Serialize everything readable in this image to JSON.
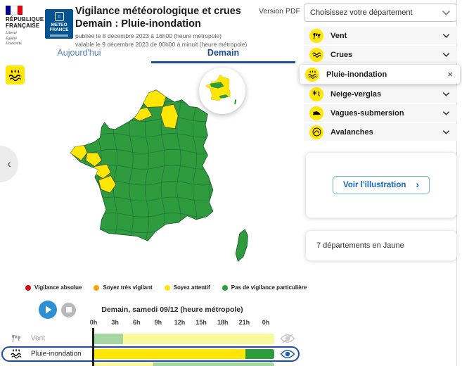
{
  "colors": {
    "alert-red": "#d50b1e",
    "alert-orange": "#f7a600",
    "alert-yellow": "#ffe605",
    "alert-green": "#2f9b3f",
    "pale-green": "#a6d6a2",
    "pale-yellow": "#f8f89c",
    "brand-blue": "#1f4f9c",
    "link-blue": "#1568c2",
    "tab-inactive": "#5585c8"
  },
  "header": {
    "republique_line1": "RÉPUBLIQUE",
    "republique_line2": "FRANÇAISE",
    "motto": "Liberté\nÉgalité\nFraternité",
    "meteo_logo_text": "METEO\nFRANCE",
    "title_line1": "Vigilance météorologique et crues",
    "title_line2": "Demain : Pluie-inondation",
    "published_line": "publiée le 8 décembre 2023 à 16h00 (heure métropole)",
    "valid_line": "valable le 9 décembre 2023 de 00h00 à minuit (heure métropole)",
    "version_pdf_label": "Version PDF",
    "department_placeholder": "Choisissez votre département"
  },
  "tabs": [
    {
      "label": "Aujourd'hui",
      "active": false
    },
    {
      "label": "Demain",
      "active": true
    }
  ],
  "phenomena": [
    {
      "label": "Vent",
      "icon": "windsock-icon",
      "control": "chevron-down",
      "active": false
    },
    {
      "label": "Crues",
      "icon": "flood-waves-icon",
      "control": "chevron-down",
      "active": false
    },
    {
      "label": "Pluie-inondation",
      "icon": "rain-flood-icon",
      "control": "close",
      "active": true
    },
    {
      "label": "Neige-verglas",
      "icon": "snow-ice-icon",
      "control": "chevron-down",
      "active": false
    },
    {
      "label": "Vagues-submersion",
      "icon": "wave-submersion-icon",
      "control": "chevron-down",
      "active": false
    },
    {
      "label": "Avalanches",
      "icon": "avalanche-icon",
      "control": "chevron-down",
      "active": false
    }
  ],
  "illustration_card": {
    "button_label": "Voir l'illustration",
    "arrow": "›"
  },
  "summary_card": {
    "text": "7 départements en Jaune"
  },
  "legend": [
    {
      "label": "Vigilance absolue",
      "color": "#d50b1e"
    },
    {
      "label": "Soyez très vigilant",
      "color": "#f7a600"
    },
    {
      "label": "Soyez attentif",
      "color": "#ffe605"
    },
    {
      "label": "Pas de vigilance particulière",
      "color": "#2f9b3f"
    }
  ],
  "timeline": {
    "heading": "Demain, samedi 09/12 (heure métropole)",
    "hour_labels": [
      "0h",
      "3h",
      "6h",
      "9h",
      "12h",
      "15h",
      "18h",
      "21h",
      "0h"
    ],
    "rows": [
      {
        "label": "Vent",
        "icon": "windsock-icon",
        "eye": "eye-off",
        "muted": true,
        "selected": false,
        "segments": [
          {
            "color": "pale-green",
            "from": 0,
            "to": 16.5
          },
          {
            "color": "pale-yellow",
            "from": 16.5,
            "to": 100
          }
        ]
      },
      {
        "label": "Pluie-inondation",
        "icon": "rain-flood-icon",
        "eye": "eye-on",
        "muted": false,
        "selected": true,
        "segments": [
          {
            "color": "alert-yellow",
            "from": 0,
            "to": 84
          },
          {
            "color": "alert-green",
            "from": 84,
            "to": 100
          }
        ]
      },
      {
        "label": "",
        "icon": "",
        "eye": "",
        "muted": false,
        "selected": false,
        "segments": [
          {
            "color": "pale-yellow",
            "from": 0,
            "to": 33
          },
          {
            "color": "pale-green",
            "from": 33,
            "to": 100
          }
        ]
      }
    ]
  }
}
